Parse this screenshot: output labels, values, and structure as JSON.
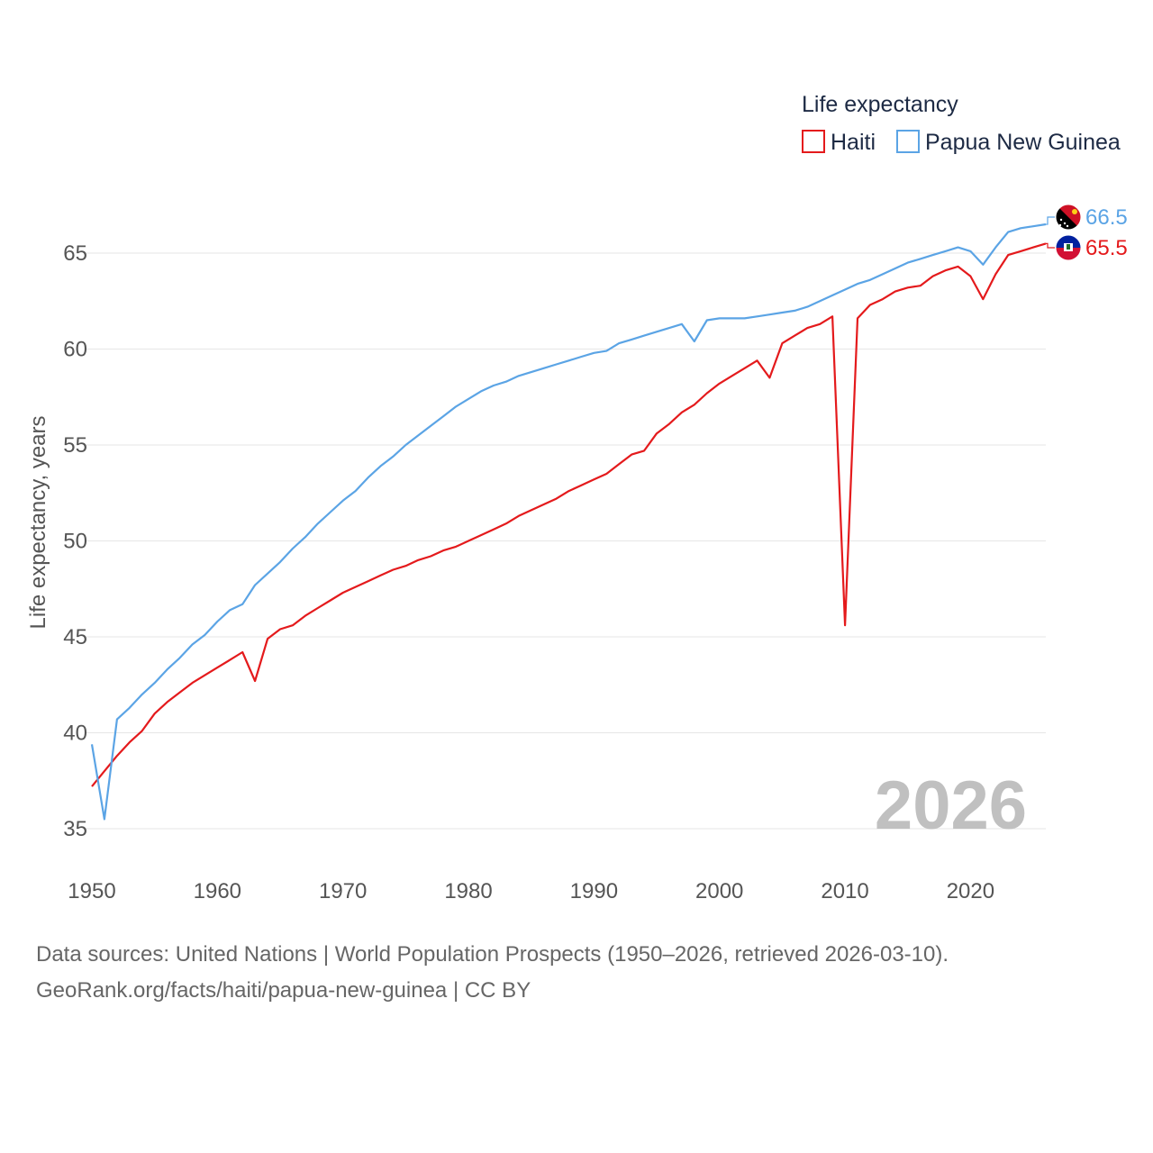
{
  "chart_data": {
    "type": "line",
    "legend_title": "Life expectancy",
    "ylabel": "Life expectancy, years",
    "year_label": "2026",
    "xlim": [
      1950,
      2026
    ],
    "ylim": [
      33,
      68
    ],
    "x_ticks": [
      1950,
      1960,
      1970,
      1980,
      1990,
      2000,
      2010,
      2020
    ],
    "y_ticks": [
      35,
      40,
      45,
      50,
      55,
      60,
      65
    ],
    "x_tick_labels": [
      "1950",
      "1960",
      "1970",
      "1980",
      "1990",
      "2000",
      "2010",
      "2020"
    ],
    "y_tick_labels": [
      "35",
      "40",
      "45",
      "50",
      "55",
      "60",
      "65"
    ],
    "x": [
      1950,
      1951,
      1952,
      1953,
      1954,
      1955,
      1956,
      1957,
      1958,
      1959,
      1960,
      1961,
      1962,
      1963,
      1964,
      1965,
      1966,
      1967,
      1968,
      1969,
      1970,
      1971,
      1972,
      1973,
      1974,
      1975,
      1976,
      1977,
      1978,
      1979,
      1980,
      1981,
      1982,
      1983,
      1984,
      1985,
      1986,
      1987,
      1988,
      1989,
      1990,
      1991,
      1992,
      1993,
      1994,
      1995,
      1996,
      1997,
      1998,
      1999,
      2000,
      2001,
      2002,
      2003,
      2004,
      2005,
      2006,
      2007,
      2008,
      2009,
      2010,
      2011,
      2012,
      2013,
      2014,
      2015,
      2016,
      2017,
      2018,
      2019,
      2020,
      2021,
      2022,
      2023,
      2024,
      2025,
      2026
    ],
    "series": [
      {
        "name": "Haiti",
        "color": "#e41a1c",
        "end_label": "65.5",
        "values": [
          37.2,
          38.0,
          38.8,
          39.5,
          40.1,
          41.0,
          41.6,
          42.1,
          42.6,
          43.0,
          43.4,
          43.8,
          44.2,
          42.7,
          44.9,
          45.4,
          45.6,
          46.1,
          46.5,
          46.9,
          47.3,
          47.6,
          47.9,
          48.2,
          48.5,
          48.7,
          49.0,
          49.2,
          49.5,
          49.7,
          50.0,
          50.3,
          50.6,
          50.9,
          51.3,
          51.6,
          51.9,
          52.2,
          52.6,
          52.9,
          53.2,
          53.5,
          54.0,
          54.5,
          54.7,
          55.6,
          56.1,
          56.7,
          57.1,
          57.7,
          58.2,
          58.6,
          59.0,
          59.4,
          58.5,
          60.3,
          60.7,
          61.1,
          61.3,
          61.7,
          45.6,
          61.6,
          62.3,
          62.6,
          63.0,
          63.2,
          63.3,
          63.8,
          64.1,
          64.3,
          63.8,
          62.6,
          63.9,
          64.9,
          65.1,
          65.3,
          65.5
        ]
      },
      {
        "name": "Papua New Guinea",
        "color": "#5ba4e5",
        "end_label": "66.5",
        "values": [
          39.4,
          35.5,
          40.7,
          41.3,
          42.0,
          42.6,
          43.3,
          43.9,
          44.6,
          45.1,
          45.8,
          46.4,
          46.7,
          47.7,
          48.3,
          48.9,
          49.6,
          50.2,
          50.9,
          51.5,
          52.1,
          52.6,
          53.3,
          53.9,
          54.4,
          55.0,
          55.5,
          56.0,
          56.5,
          57.0,
          57.4,
          57.8,
          58.1,
          58.3,
          58.6,
          58.8,
          59.0,
          59.2,
          59.4,
          59.6,
          59.8,
          59.9,
          60.3,
          60.5,
          60.7,
          60.9,
          61.1,
          61.3,
          60.4,
          61.5,
          61.6,
          61.6,
          61.6,
          61.7,
          61.8,
          61.9,
          62.0,
          62.2,
          62.5,
          62.8,
          63.1,
          63.4,
          63.6,
          63.9,
          64.2,
          64.5,
          64.7,
          64.9,
          65.1,
          65.3,
          65.1,
          64.4,
          65.3,
          66.1,
          66.3,
          66.4,
          66.5
        ]
      }
    ]
  },
  "source": {
    "line1": "Data sources: United Nations | World Population Prospects (1950–2026, retrieved 2026-03-10).",
    "line2": "GeoRank.org/facts/haiti/papua-new-guinea | CC BY"
  }
}
